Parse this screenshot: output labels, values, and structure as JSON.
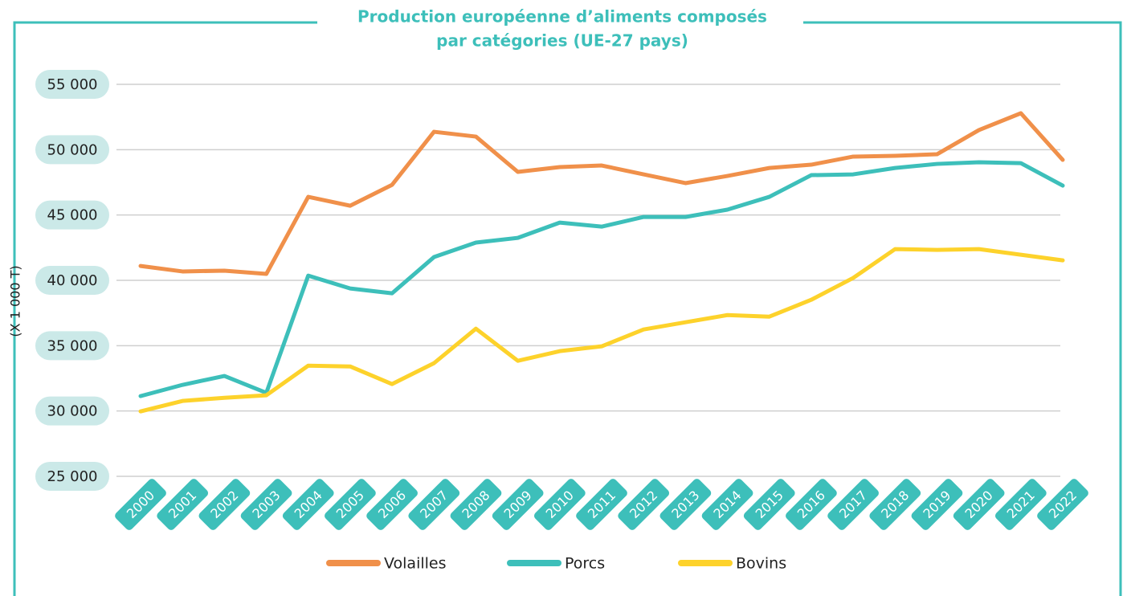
{
  "chart_data": {
    "type": "line",
    "title": [
      "Production européenne d’aliments composés",
      "par catégories (UE-27 pays)"
    ],
    "y_label": "(X 1 000 T)",
    "categories": [
      "2000",
      "2001",
      "2002",
      "2003",
      "2004",
      "2005",
      "2006",
      "2007",
      "2008",
      "2009",
      "2010",
      "2011",
      "2012",
      "2013",
      "2014",
      "2015",
      "2016",
      "2017",
      "2018",
      "2019",
      "2020",
      "2021",
      "2022"
    ],
    "series": [
      {
        "name": "Volailles",
        "color": "#f0904a",
        "values": [
          41100,
          40680,
          40740,
          40490,
          46390,
          45710,
          47310,
          51370,
          51000,
          48300,
          48670,
          48790,
          48110,
          47440,
          47990,
          48600,
          48850,
          49470,
          49530,
          49650,
          51500,
          52790,
          49220
        ]
      },
      {
        "name": "Porcs",
        "color": "#3dbfba",
        "values": [
          31140,
          32000,
          32680,
          31390,
          40360,
          39380,
          39010,
          41780,
          42890,
          43250,
          44420,
          44110,
          44850,
          44850,
          45410,
          46390,
          48050,
          48110,
          48600,
          48910,
          49040,
          48970,
          47250
        ]
      },
      {
        "name": "Bovins",
        "color": "#fdd22b",
        "values": [
          29970,
          30770,
          31010,
          31200,
          33470,
          33410,
          32060,
          33660,
          36300,
          33840,
          34580,
          34950,
          36240,
          36790,
          37340,
          37220,
          38510,
          40180,
          42390,
          42330,
          42390,
          41960,
          41530
        ]
      }
    ],
    "ylim": [
      25000,
      55000
    ],
    "yticks": [
      {
        "value": 25000,
        "label": "25 000"
      },
      {
        "value": 30000,
        "label": "30 000"
      },
      {
        "value": 35000,
        "label": "35 000"
      },
      {
        "value": 40000,
        "label": "40 000"
      },
      {
        "value": 45000,
        "label": "45 000"
      },
      {
        "value": 50000,
        "label": "50 000"
      },
      {
        "value": 55000,
        "label": "55 000"
      }
    ],
    "grid": true,
    "legend": "bottom"
  }
}
